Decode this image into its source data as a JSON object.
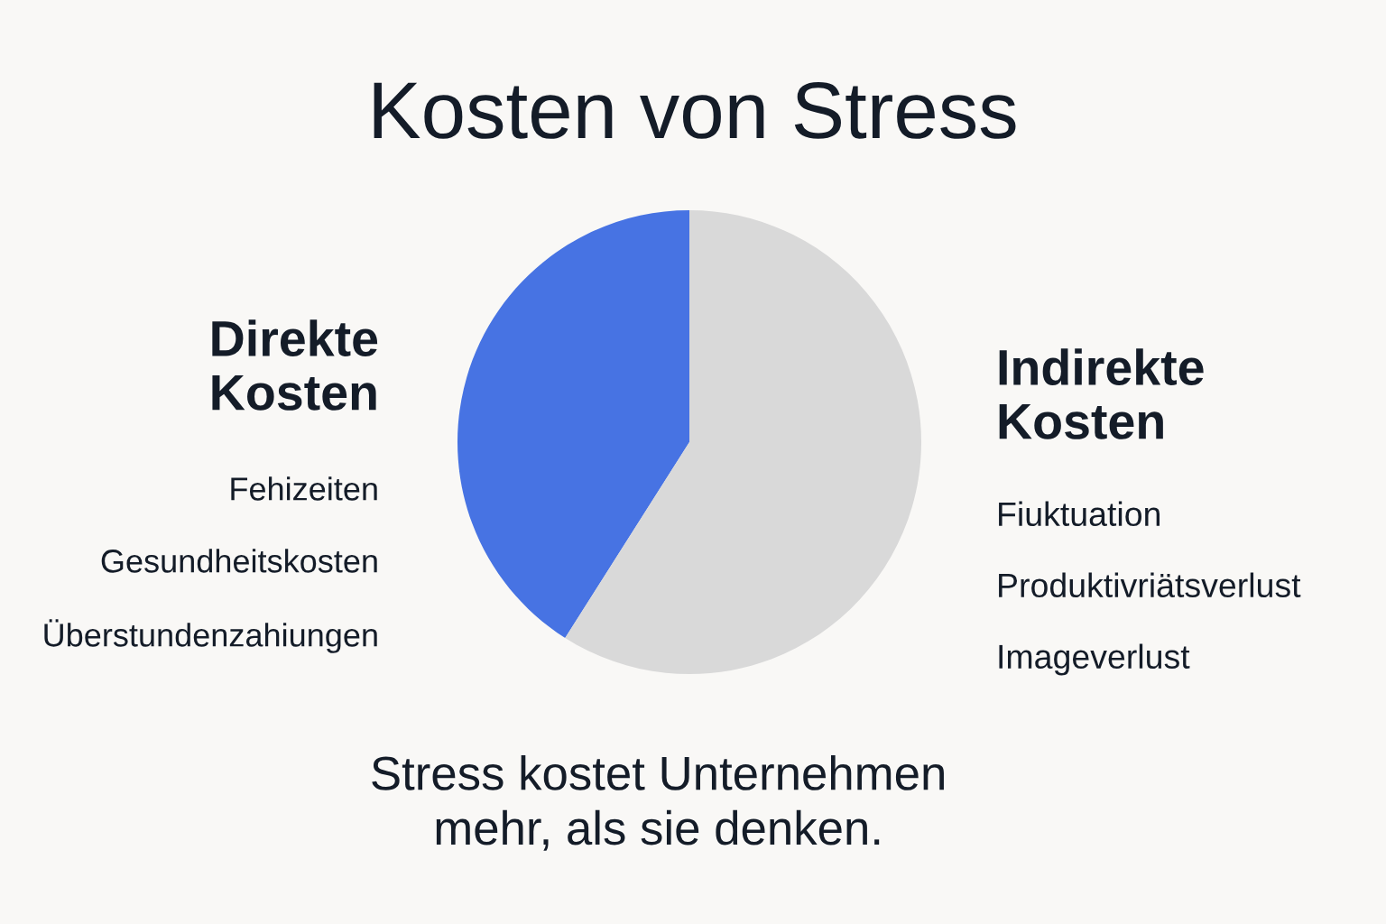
{
  "chart_data": {
    "type": "pie",
    "title": "Kosten von Stress",
    "categories": [
      "Direkte\nKosten",
      "Indirekte\nKosten"
    ],
    "values": [
      41,
      59
    ],
    "colors": [
      "#4773e3",
      "#d9d9d9"
    ],
    "annotations": [
      "Fehizeiten",
      "Gesundheitskosten",
      "Überstundenzahiungen",
      "Fiuktuation",
      "Produktivriätsverlust",
      "Imageverlust",
      "Stress kostet Unternehmen\nmehr, als sie denken."
    ]
  }
}
